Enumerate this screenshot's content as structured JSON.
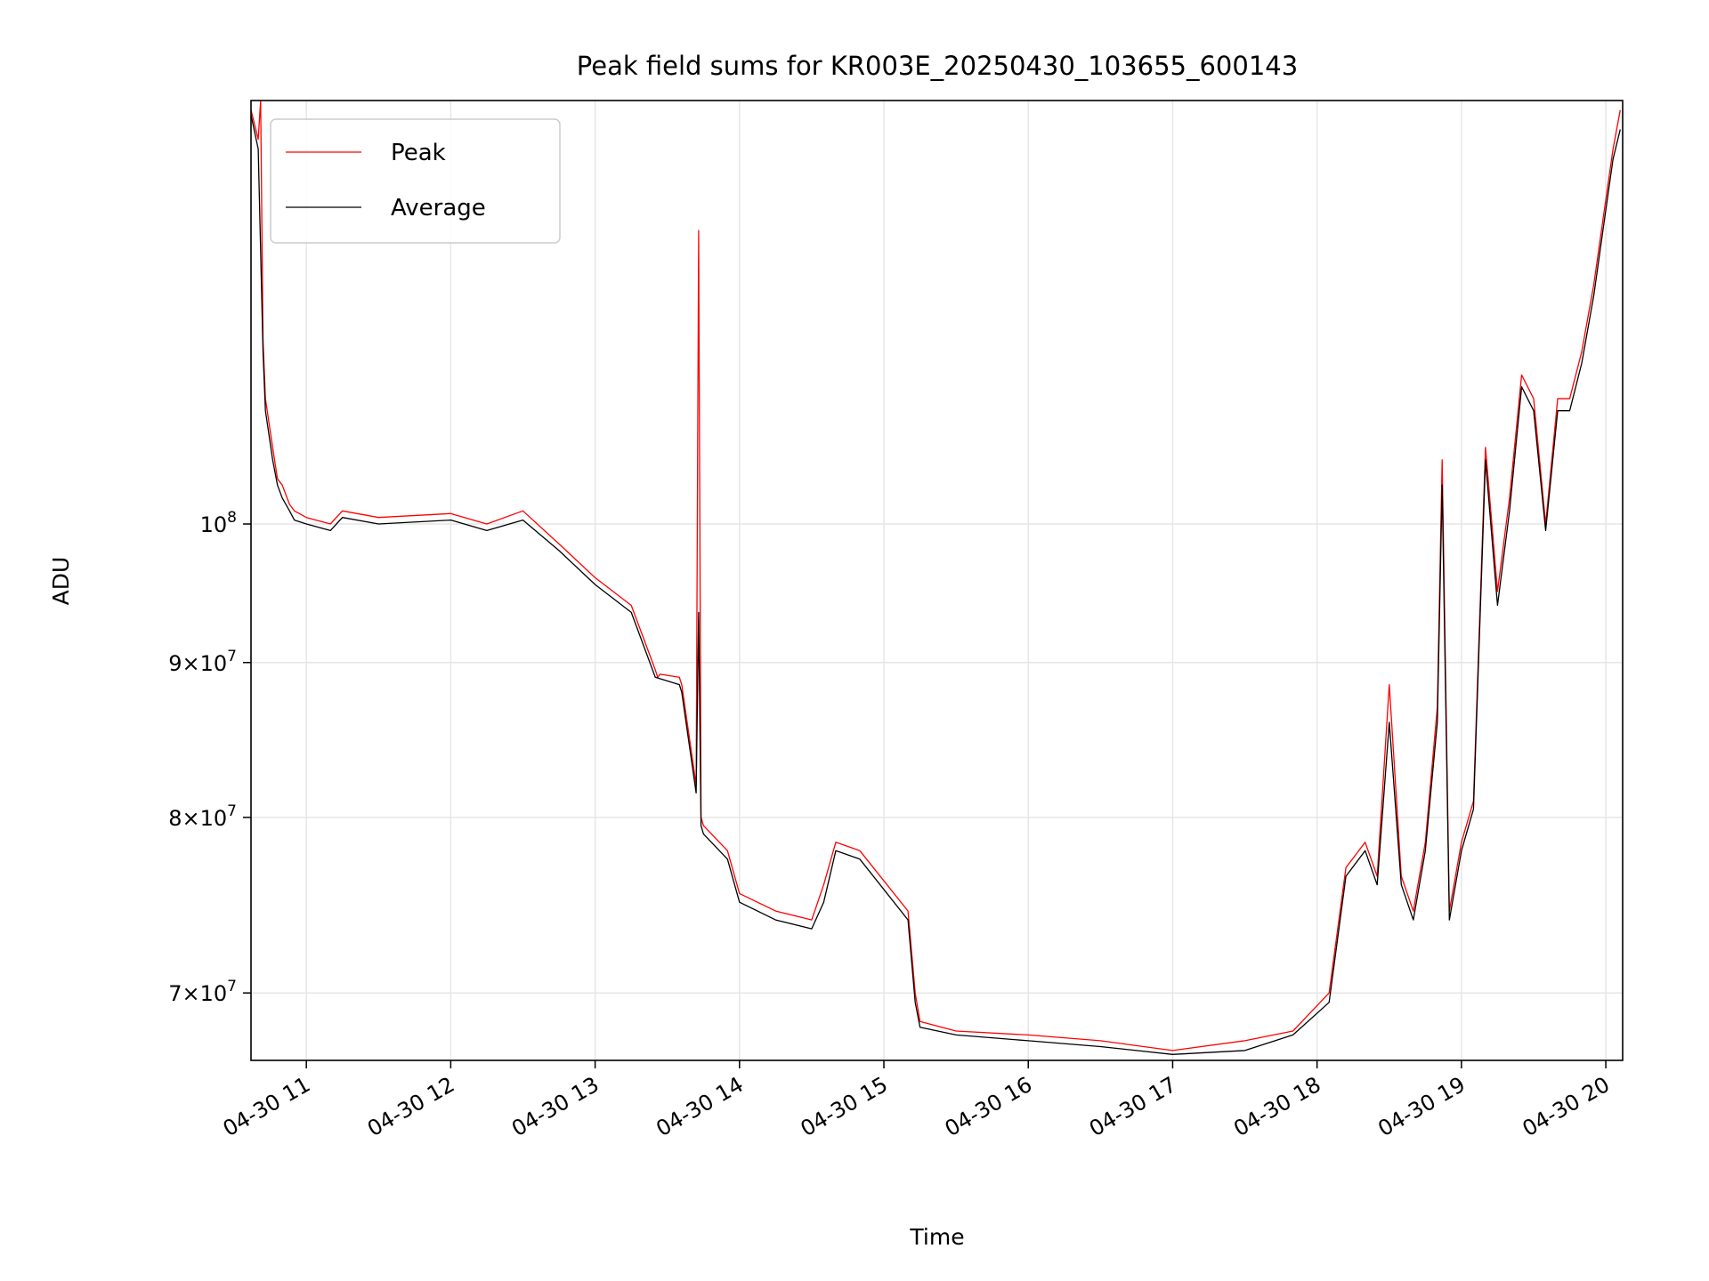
{
  "chart_data": {
    "type": "line",
    "title": "Peak field sums for KR003E_20250430_103655_600143",
    "xlabel": "Time",
    "ylabel": "ADU",
    "yscale": "log",
    "grid": true,
    "legend_position": "top-left",
    "x_tick_labels": [
      "04-30 11",
      "04-30 12",
      "04-30 13",
      "04-30 14",
      "04-30 15",
      "04-30 16",
      "04-30 17",
      "04-30 18",
      "04-30 19",
      "04-30 20"
    ],
    "y_tick_labels": [
      {
        "value": 70000000,
        "mantissa": "7",
        "base": "10",
        "exp": "7"
      },
      {
        "value": 80000000,
        "mantissa": "8",
        "base": "10",
        "exp": "7"
      },
      {
        "value": 90000000,
        "mantissa": "9",
        "base": "10",
        "exp": "7"
      },
      {
        "value": 100000000,
        "mantissa": "",
        "base": "10",
        "exp": "8"
      }
    ],
    "xlim": [
      "2025-04-30 10:37",
      "2025-04-30 20:07"
    ],
    "ylim": [
      66500000,
      138000000
    ],
    "series": [
      {
        "name": "Peak",
        "color": "#ff0000",
        "x": [
          "2025-04-30 10:37",
          "2025-04-30 10:40",
          "2025-04-30 10:41",
          "2025-04-30 10:42",
          "2025-04-30 10:43",
          "2025-04-30 10:46",
          "2025-04-30 10:48",
          "2025-04-30 10:50",
          "2025-04-30 10:53",
          "2025-04-30 10:55",
          "2025-04-30 11:00",
          "2025-04-30 11:10",
          "2025-04-30 11:15",
          "2025-04-30 11:30",
          "2025-04-30 12:00",
          "2025-04-30 12:15",
          "2025-04-30 12:30",
          "2025-04-30 12:45",
          "2025-04-30 13:00",
          "2025-04-30 13:15",
          "2025-04-30 13:25",
          "2025-04-30 13:26",
          "2025-04-30 13:27",
          "2025-04-30 13:35",
          "2025-04-30 13:36",
          "2025-04-30 13:42",
          "2025-04-30 13:43",
          "2025-04-30 13:44",
          "2025-04-30 13:45",
          "2025-04-30 13:55",
          "2025-04-30 14:00",
          "2025-04-30 14:15",
          "2025-04-30 14:30",
          "2025-04-30 14:35",
          "2025-04-30 14:40",
          "2025-04-30 14:50",
          "2025-04-30 15:10",
          "2025-04-30 15:13",
          "2025-04-30 15:15",
          "2025-04-30 15:30",
          "2025-04-30 16:00",
          "2025-04-30 16:30",
          "2025-04-30 17:00",
          "2025-04-30 17:30",
          "2025-04-30 17:50",
          "2025-04-30 18:05",
          "2025-04-30 18:12",
          "2025-04-30 18:20",
          "2025-04-30 18:25",
          "2025-04-30 18:30",
          "2025-04-30 18:35",
          "2025-04-30 18:40",
          "2025-04-30 18:45",
          "2025-04-30 18:50",
          "2025-04-30 18:52",
          "2025-04-30 18:55",
          "2025-04-30 19:00",
          "2025-04-30 19:05",
          "2025-04-30 19:10",
          "2025-04-30 19:15",
          "2025-04-30 19:20",
          "2025-04-30 19:25",
          "2025-04-30 19:30",
          "2025-04-30 19:35",
          "2025-04-30 19:40",
          "2025-04-30 19:45",
          "2025-04-30 19:50",
          "2025-04-30 19:55",
          "2025-04-30 20:00",
          "2025-04-30 20:03",
          "2025-04-30 20:06"
        ],
        "y": [
          137000000,
          134000000,
          138000000,
          115000000,
          110000000,
          106000000,
          103500000,
          103000000,
          101500000,
          101000000,
          100500000,
          100000000,
          101000000,
          100500000,
          100800000,
          100000000,
          101000000,
          98500000,
          96000000,
          94000000,
          89500000,
          89000000,
          89200000,
          89000000,
          88500000,
          82000000,
          125000000,
          80000000,
          79500000,
          78000000,
          75500000,
          74500000,
          74000000,
          76000000,
          78500000,
          78000000,
          74500000,
          70000000,
          68500000,
          68000000,
          67800000,
          67500000,
          67000000,
          67500000,
          68000000,
          70000000,
          77000000,
          78500000,
          76500000,
          88500000,
          76500000,
          74500000,
          78500000,
          87000000,
          105000000,
          74500000,
          78500000,
          81000000,
          106000000,
          95000000,
          102000000,
          112000000,
          110000000,
          100000000,
          110000000,
          110000000,
          114000000,
          120000000,
          128000000,
          133000000,
          137000000
        ]
      },
      {
        "name": "Average",
        "color": "#000000",
        "x": [
          "2025-04-30 10:37",
          "2025-04-30 10:40",
          "2025-04-30 10:42",
          "2025-04-30 10:43",
          "2025-04-30 10:46",
          "2025-04-30 10:48",
          "2025-04-30 10:50",
          "2025-04-30 10:53",
          "2025-04-30 10:55",
          "2025-04-30 11:00",
          "2025-04-30 11:10",
          "2025-04-30 11:15",
          "2025-04-30 11:30",
          "2025-04-30 12:00",
          "2025-04-30 12:15",
          "2025-04-30 12:30",
          "2025-04-30 12:45",
          "2025-04-30 13:00",
          "2025-04-30 13:15",
          "2025-04-30 13:25",
          "2025-04-30 13:35",
          "2025-04-30 13:36",
          "2025-04-30 13:42",
          "2025-04-30 13:43",
          "2025-04-30 13:44",
          "2025-04-30 13:45",
          "2025-04-30 13:55",
          "2025-04-30 14:00",
          "2025-04-30 14:15",
          "2025-04-30 14:30",
          "2025-04-30 14:35",
          "2025-04-30 14:40",
          "2025-04-30 14:50",
          "2025-04-30 15:10",
          "2025-04-30 15:13",
          "2025-04-30 15:15",
          "2025-04-30 15:30",
          "2025-04-30 16:00",
          "2025-04-30 16:30",
          "2025-04-30 17:00",
          "2025-04-30 17:30",
          "2025-04-30 17:50",
          "2025-04-30 18:05",
          "2025-04-30 18:12",
          "2025-04-30 18:20",
          "2025-04-30 18:25",
          "2025-04-30 18:30",
          "2025-04-30 18:35",
          "2025-04-30 18:40",
          "2025-04-30 18:45",
          "2025-04-30 18:50",
          "2025-04-30 18:52",
          "2025-04-30 18:55",
          "2025-04-30 19:00",
          "2025-04-30 19:05",
          "2025-04-30 19:10",
          "2025-04-30 19:15",
          "2025-04-30 19:20",
          "2025-04-30 19:25",
          "2025-04-30 19:30",
          "2025-04-30 19:35",
          "2025-04-30 19:40",
          "2025-04-30 19:45",
          "2025-04-30 19:50",
          "2025-04-30 19:55",
          "2025-04-30 20:00",
          "2025-04-30 20:03",
          "2025-04-30 20:06"
        ],
        "y": [
          136500000,
          133000000,
          114000000,
          109000000,
          105000000,
          103000000,
          102000000,
          101000000,
          100300000,
          100000000,
          99500000,
          100500000,
          100000000,
          100300000,
          99500000,
          100300000,
          98000000,
          95500000,
          93500000,
          89000000,
          88500000,
          88000000,
          81500000,
          93500000,
          79500000,
          79000000,
          77500000,
          75000000,
          74000000,
          73500000,
          75000000,
          78000000,
          77500000,
          74000000,
          69500000,
          68200000,
          67800000,
          67500000,
          67200000,
          66800000,
          67000000,
          67800000,
          69500000,
          76500000,
          78000000,
          76000000,
          86000000,
          76000000,
          74000000,
          78000000,
          86000000,
          103000000,
          74000000,
          78000000,
          80500000,
          105000000,
          94000000,
          101000000,
          111000000,
          109000000,
          99500000,
          109000000,
          109000000,
          113000000,
          119000000,
          127000000,
          132000000,
          135000000
        ]
      }
    ]
  }
}
